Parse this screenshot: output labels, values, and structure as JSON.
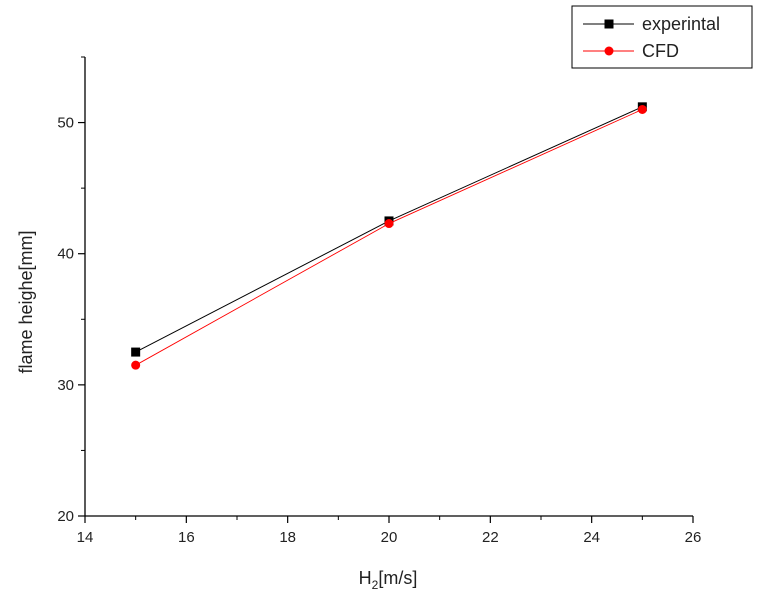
{
  "chart_data": {
    "type": "line",
    "title": "",
    "xlabel_main": "H",
    "xlabel_sub": "2",
    "xlabel_tail": "[m/s]",
    "ylabel": "flame heighe[mm]",
    "xlim": [
      14,
      26
    ],
    "ylim": [
      20,
      55
    ],
    "xticks": [
      14,
      16,
      18,
      20,
      22,
      24,
      26
    ],
    "yticks": [
      20,
      30,
      40,
      50
    ],
    "legend_position": "top-right",
    "series": [
      {
        "name": "experintal",
        "color": "#000000",
        "marker": "square",
        "x": [
          15,
          20,
          25
        ],
        "y": [
          32.5,
          42.5,
          51.2
        ]
      },
      {
        "name": "CFD",
        "color": "#ff0000",
        "marker": "circle",
        "x": [
          15,
          20,
          25
        ],
        "y": [
          31.5,
          42.3,
          51.0
        ]
      }
    ]
  }
}
